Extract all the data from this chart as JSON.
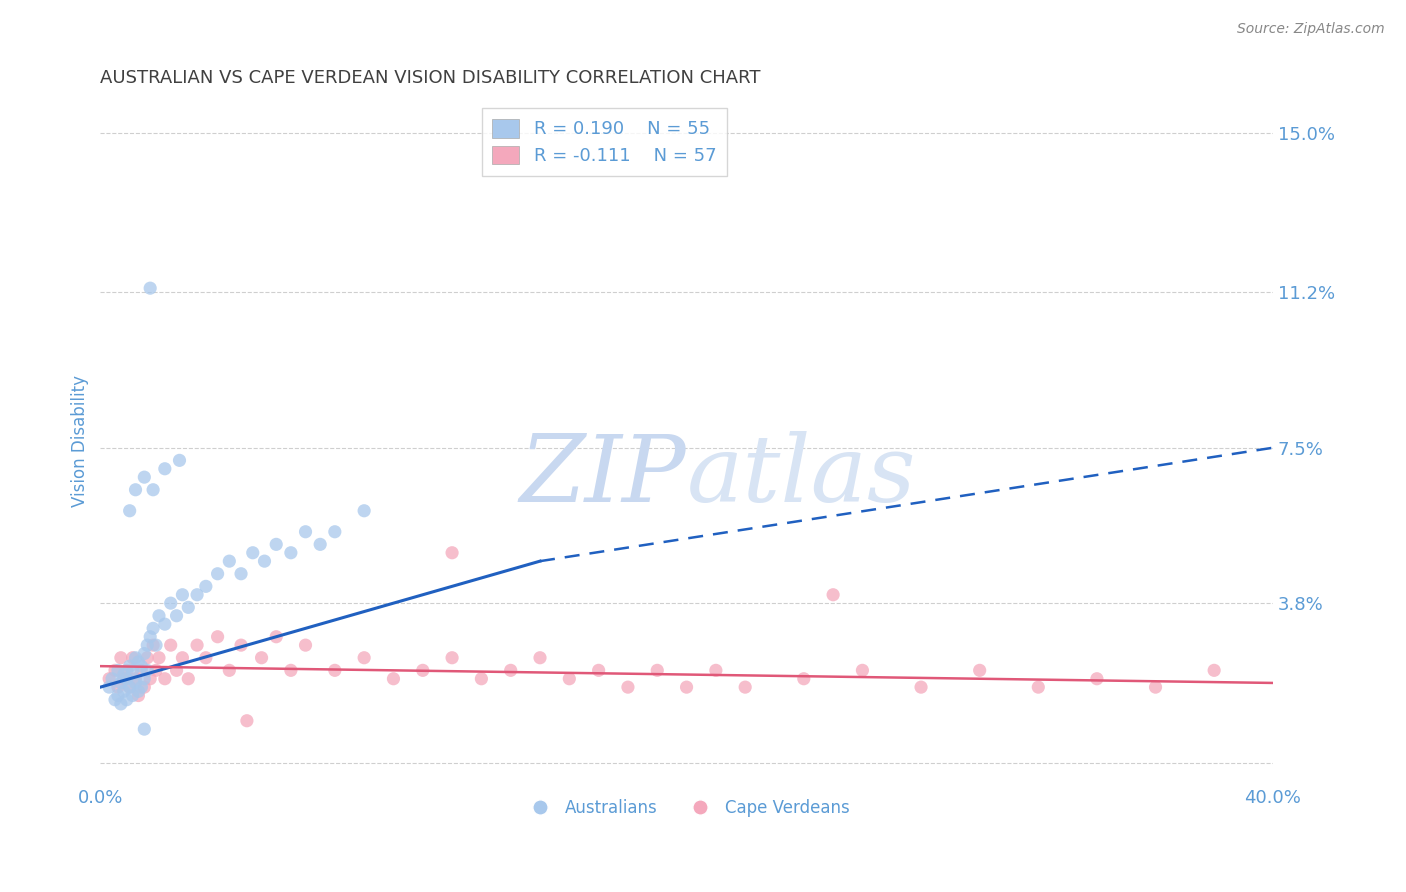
{
  "title": "AUSTRALIAN VS CAPE VERDEAN VISION DISABILITY CORRELATION CHART",
  "source": "Source: ZipAtlas.com",
  "ylabel": "Vision Disability",
  "yticks": [
    0.0,
    0.038,
    0.075,
    0.112,
    0.15
  ],
  "ytick_labels": [
    "",
    "3.8%",
    "7.5%",
    "11.2%",
    "15.0%"
  ],
  "xlim": [
    0.0,
    0.4
  ],
  "ylim": [
    -0.005,
    0.158
  ],
  "legend_labels": [
    "Australians",
    "Cape Verdeans"
  ],
  "R_australian": 0.19,
  "N_australian": 55,
  "R_capeverdean": -0.111,
  "N_capeverdean": 57,
  "australian_color": "#A8C8EC",
  "capeverdean_color": "#F4A8BC",
  "australian_line_color": "#2060C0",
  "capeverdean_line_color": "#E05878",
  "title_color": "#404040",
  "axis_label_color": "#5B9BD5",
  "grid_color": "#BBBBBB",
  "watermark_zip_color": "#C8D8F0",
  "watermark_atlas_color": "#D8E4F4",
  "aus_x": [
    0.003,
    0.004,
    0.005,
    0.006,
    0.006,
    0.007,
    0.007,
    0.008,
    0.008,
    0.009,
    0.009,
    0.01,
    0.01,
    0.011,
    0.011,
    0.012,
    0.012,
    0.013,
    0.013,
    0.014,
    0.014,
    0.015,
    0.015,
    0.016,
    0.016,
    0.017,
    0.018,
    0.019,
    0.02,
    0.022,
    0.024,
    0.026,
    0.028,
    0.03,
    0.033,
    0.036,
    0.04,
    0.044,
    0.048,
    0.052,
    0.056,
    0.06,
    0.065,
    0.07,
    0.075,
    0.08,
    0.09,
    0.01,
    0.012,
    0.015,
    0.018,
    0.022,
    0.027,
    0.017,
    0.015
  ],
  "aus_y": [
    0.018,
    0.02,
    0.015,
    0.022,
    0.016,
    0.019,
    0.014,
    0.021,
    0.017,
    0.02,
    0.015,
    0.023,
    0.018,
    0.022,
    0.016,
    0.025,
    0.019,
    0.024,
    0.017,
    0.023,
    0.018,
    0.026,
    0.02,
    0.028,
    0.022,
    0.03,
    0.032,
    0.028,
    0.035,
    0.033,
    0.038,
    0.035,
    0.04,
    0.037,
    0.04,
    0.042,
    0.045,
    0.048,
    0.045,
    0.05,
    0.048,
    0.052,
    0.05,
    0.055,
    0.052,
    0.055,
    0.06,
    0.06,
    0.065,
    0.068,
    0.065,
    0.07,
    0.072,
    0.113,
    0.008
  ],
  "cv_x": [
    0.003,
    0.005,
    0.006,
    0.007,
    0.008,
    0.009,
    0.01,
    0.011,
    0.012,
    0.013,
    0.014,
    0.015,
    0.016,
    0.017,
    0.018,
    0.019,
    0.02,
    0.022,
    0.024,
    0.026,
    0.028,
    0.03,
    0.033,
    0.036,
    0.04,
    0.044,
    0.048,
    0.055,
    0.06,
    0.065,
    0.07,
    0.08,
    0.09,
    0.1,
    0.11,
    0.12,
    0.13,
    0.14,
    0.15,
    0.16,
    0.17,
    0.18,
    0.19,
    0.2,
    0.21,
    0.22,
    0.24,
    0.26,
    0.28,
    0.3,
    0.32,
    0.34,
    0.36,
    0.38,
    0.25,
    0.12,
    0.05
  ],
  "cv_y": [
    0.02,
    0.022,
    0.018,
    0.025,
    0.02,
    0.022,
    0.018,
    0.025,
    0.02,
    0.016,
    0.022,
    0.018,
    0.025,
    0.02,
    0.028,
    0.022,
    0.025,
    0.02,
    0.028,
    0.022,
    0.025,
    0.02,
    0.028,
    0.025,
    0.03,
    0.022,
    0.028,
    0.025,
    0.03,
    0.022,
    0.028,
    0.022,
    0.025,
    0.02,
    0.022,
    0.025,
    0.02,
    0.022,
    0.025,
    0.02,
    0.022,
    0.018,
    0.022,
    0.018,
    0.022,
    0.018,
    0.02,
    0.022,
    0.018,
    0.022,
    0.018,
    0.02,
    0.018,
    0.022,
    0.04,
    0.05,
    0.01
  ],
  "aus_line_x0": 0.0,
  "aus_line_x_solid_end": 0.15,
  "aus_line_x_end": 0.4,
  "aus_line_y0": 0.018,
  "aus_line_y_solid_end": 0.048,
  "aus_line_y_end": 0.075,
  "cv_line_x0": 0.0,
  "cv_line_x_end": 0.4,
  "cv_line_y0": 0.023,
  "cv_line_y_end": 0.019
}
